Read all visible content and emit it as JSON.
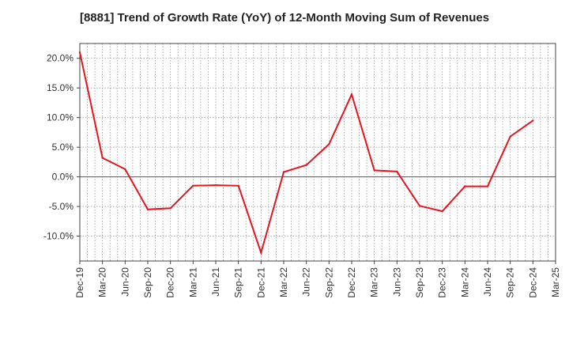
{
  "chart_data": {
    "type": "line",
    "title": "[8881]  Trend of Growth Rate (YoY) of 12-Month Moving Sum of Revenues",
    "xlabel": "",
    "ylabel": "",
    "x": [
      "Dec-19",
      "Mar-20",
      "Jun-20",
      "Sep-20",
      "Dec-20",
      "Mar-21",
      "Jun-21",
      "Sep-21",
      "Dec-21",
      "Mar-22",
      "Jun-22",
      "Sep-22",
      "Dec-22",
      "Mar-23",
      "Jun-23",
      "Sep-23",
      "Dec-23",
      "Mar-24",
      "Jun-24",
      "Sep-24",
      "Dec-24",
      "Mar-25"
    ],
    "x_tick_labels": [
      "Dec-19",
      "Mar-20",
      "Jun-20",
      "Sep-20",
      "Dec-20",
      "Mar-21",
      "Jun-21",
      "Sep-21",
      "Dec-21",
      "Mar-22",
      "Jun-22",
      "Sep-22",
      "Dec-22",
      "Mar-23",
      "Jun-23",
      "Sep-23",
      "Dec-23",
      "Mar-24",
      "Jun-24",
      "Sep-24",
      "Dec-24",
      "Mar-25"
    ],
    "series": [
      {
        "color": "#e8141c",
        "values": [
          21.0,
          3.2,
          1.3,
          -5.5,
          -5.3,
          -1.5,
          -1.4,
          -1.5,
          -12.8,
          0.8,
          2.0,
          5.5,
          13.9,
          1.1,
          0.9,
          -4.9,
          -5.8,
          -1.6,
          -1.6,
          6.8,
          9.5,
          null
        ]
      }
    ],
    "y_ticks": [
      20.0,
      15.0,
      10.0,
      5.0,
      0.0,
      -5.0,
      -10.0
    ],
    "y_tick_labels": [
      "20.0%",
      "15.0%",
      "10.0%",
      "5.0%",
      "0.0%",
      "-5.0%",
      "-10.0%"
    ],
    "ylim": [
      -14.2,
      22.5
    ],
    "grid": "dotted, vertical lines at monthly intervals, horizontal at y ticks",
    "zero_line": true,
    "legend": "none"
  }
}
